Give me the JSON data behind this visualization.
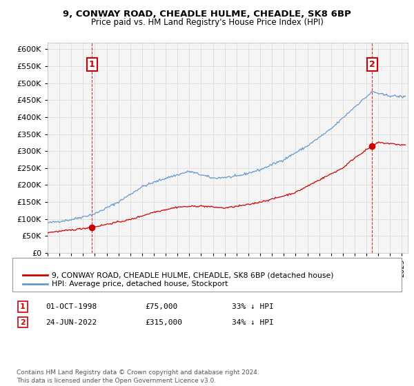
{
  "title": "9, CONWAY ROAD, CHEADLE HULME, CHEADLE, SK8 6BP",
  "subtitle": "Price paid vs. HM Land Registry's House Price Index (HPI)",
  "ylim": [
    0,
    620000
  ],
  "yticks": [
    0,
    50000,
    100000,
    150000,
    200000,
    250000,
    300000,
    350000,
    400000,
    450000,
    500000,
    550000,
    600000
  ],
  "ytick_labels": [
    "£0",
    "£50K",
    "£100K",
    "£150K",
    "£200K",
    "£250K",
    "£300K",
    "£350K",
    "£400K",
    "£450K",
    "£500K",
    "£550K",
    "£600K"
  ],
  "xlim_start": 1995.0,
  "xlim_end": 2025.5,
  "transaction1_x": 1998.75,
  "transaction1_y": 75000,
  "transaction1_label": "1",
  "transaction2_x": 2022.48,
  "transaction2_y": 315000,
  "transaction2_label": "2",
  "legend_red": "9, CONWAY ROAD, CHEADLE HULME, CHEADLE, SK8 6BP (detached house)",
  "legend_blue": "HPI: Average price, detached house, Stockport",
  "red_color": "#cc0000",
  "blue_color": "#6699cc",
  "bg_color": "#ffffff",
  "grid_color": "#dddddd",
  "hpi_key_years": [
    1995,
    1997,
    1999,
    2001,
    2003,
    2005,
    2007,
    2009,
    2011,
    2013,
    2015,
    2017,
    2019,
    2021,
    2022.5,
    2023.5,
    2025
  ],
  "hpi_key_vals": [
    88000,
    98000,
    115000,
    150000,
    195000,
    220000,
    240000,
    220000,
    225000,
    245000,
    275000,
    315000,
    365000,
    430000,
    475000,
    465000,
    460000
  ],
  "red_key_years": [
    1995,
    1997,
    1998.0,
    1998.75,
    2000,
    2002,
    2004,
    2006,
    2008,
    2010,
    2012,
    2014,
    2016,
    2018,
    2020,
    2021,
    2022.48,
    2023,
    2024,
    2025
  ],
  "red_key_vals": [
    60000,
    67000,
    72000,
    75000,
    84000,
    98000,
    120000,
    135000,
    138000,
    132000,
    142000,
    158000,
    178000,
    215000,
    250000,
    280000,
    315000,
    325000,
    322000,
    318000
  ],
  "footer": "Contains HM Land Registry data © Crown copyright and database right 2024.\nThis data is licensed under the Open Government Licence v3.0."
}
